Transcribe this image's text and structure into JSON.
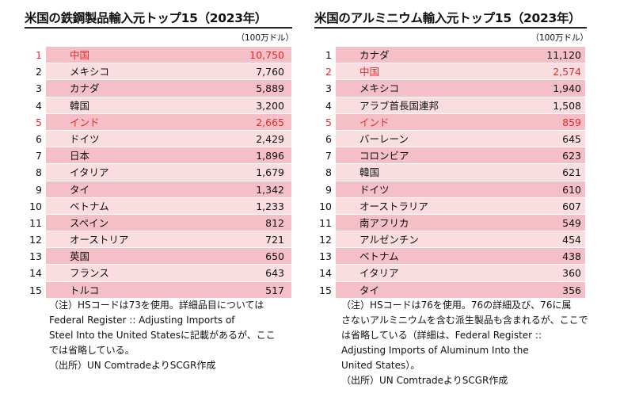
{
  "chart_data": [
    {
      "type": "table",
      "title": "米国の鉄鋼製品輸入元トップ15（2023年）",
      "unit": "（100万ドル）",
      "highlight_color": "#e52a2a",
      "rows": [
        {
          "rank": "1",
          "name": "中国",
          "value": "10,750",
          "highlight": true
        },
        {
          "rank": "2",
          "name": "メキシコ",
          "value": "7,760",
          "highlight": false
        },
        {
          "rank": "3",
          "name": "カナダ",
          "value": "5,889",
          "highlight": false
        },
        {
          "rank": "4",
          "name": "韓国",
          "value": "3,200",
          "highlight": false
        },
        {
          "rank": "5",
          "name": "インド",
          "value": "2,665",
          "highlight": true
        },
        {
          "rank": "6",
          "name": "ドイツ",
          "value": "2,429",
          "highlight": false
        },
        {
          "rank": "7",
          "name": "日本",
          "value": "1,896",
          "highlight": false
        },
        {
          "rank": "8",
          "name": "イタリア",
          "value": "1,679",
          "highlight": false
        },
        {
          "rank": "9",
          "name": "タイ",
          "value": "1,342",
          "highlight": false
        },
        {
          "rank": "10",
          "name": "ベトナム",
          "value": "1,233",
          "highlight": false
        },
        {
          "rank": "11",
          "name": "スペイン",
          "value": "812",
          "highlight": false
        },
        {
          "rank": "12",
          "name": "オーストリア",
          "value": "721",
          "highlight": false
        },
        {
          "rank": "13",
          "name": "英国",
          "value": "650",
          "highlight": false
        },
        {
          "rank": "14",
          "name": "フランス",
          "value": "643",
          "highlight": false
        },
        {
          "rank": "15",
          "name": "トルコ",
          "value": "517",
          "highlight": false
        }
      ],
      "note": "（注）HSコードは73を使用。詳細品目については\nFederal Register :: Adjusting Imports of\nSteel Into the United Statesに記載があるが、ここ\nでは省略している。\n（出所）UN ComtradeよりSCGR作成"
    },
    {
      "type": "table",
      "title": "米国のアルミニウム輸入元トップ15（2023年）",
      "unit": "（100万ドル）",
      "highlight_color": "#e52a2a",
      "rows": [
        {
          "rank": "1",
          "name": "カナダ",
          "value": "11,120",
          "highlight": false
        },
        {
          "rank": "2",
          "name": "中国",
          "value": "2,574",
          "highlight": true
        },
        {
          "rank": "3",
          "name": "メキシコ",
          "value": "1,940",
          "highlight": false
        },
        {
          "rank": "4",
          "name": "アラブ首長国連邦",
          "value": "1,508",
          "highlight": false
        },
        {
          "rank": "5",
          "name": "インド",
          "value": "859",
          "highlight": true
        },
        {
          "rank": "6",
          "name": "バーレーン",
          "value": "645",
          "highlight": false
        },
        {
          "rank": "7",
          "name": "コロンビア",
          "value": "623",
          "highlight": false
        },
        {
          "rank": "8",
          "name": "韓国",
          "value": "621",
          "highlight": false
        },
        {
          "rank": "9",
          "name": "ドイツ",
          "value": "610",
          "highlight": false
        },
        {
          "rank": "10",
          "name": "オーストラリア",
          "value": "607",
          "highlight": false
        },
        {
          "rank": "11",
          "name": "南アフリカ",
          "value": "549",
          "highlight": false
        },
        {
          "rank": "12",
          "name": "アルゼンチン",
          "value": "454",
          "highlight": false
        },
        {
          "rank": "13",
          "name": "ベトナム",
          "value": "438",
          "highlight": false
        },
        {
          "rank": "14",
          "name": "イタリア",
          "value": "360",
          "highlight": false
        },
        {
          "rank": "15",
          "name": "タイ",
          "value": "356",
          "highlight": false
        }
      ],
      "note": "（注）HSコードは76を使用。76の詳細及び、76に属\nさないアルミニウムを含む派生製品も含まれるが、ここで\nは省略している（詳細は、Federal Register ::\nAdjusting Imports of Aluminum Into the\nUnited States）。\n（出所）UN ComtradeよりSCGR作成"
    }
  ]
}
